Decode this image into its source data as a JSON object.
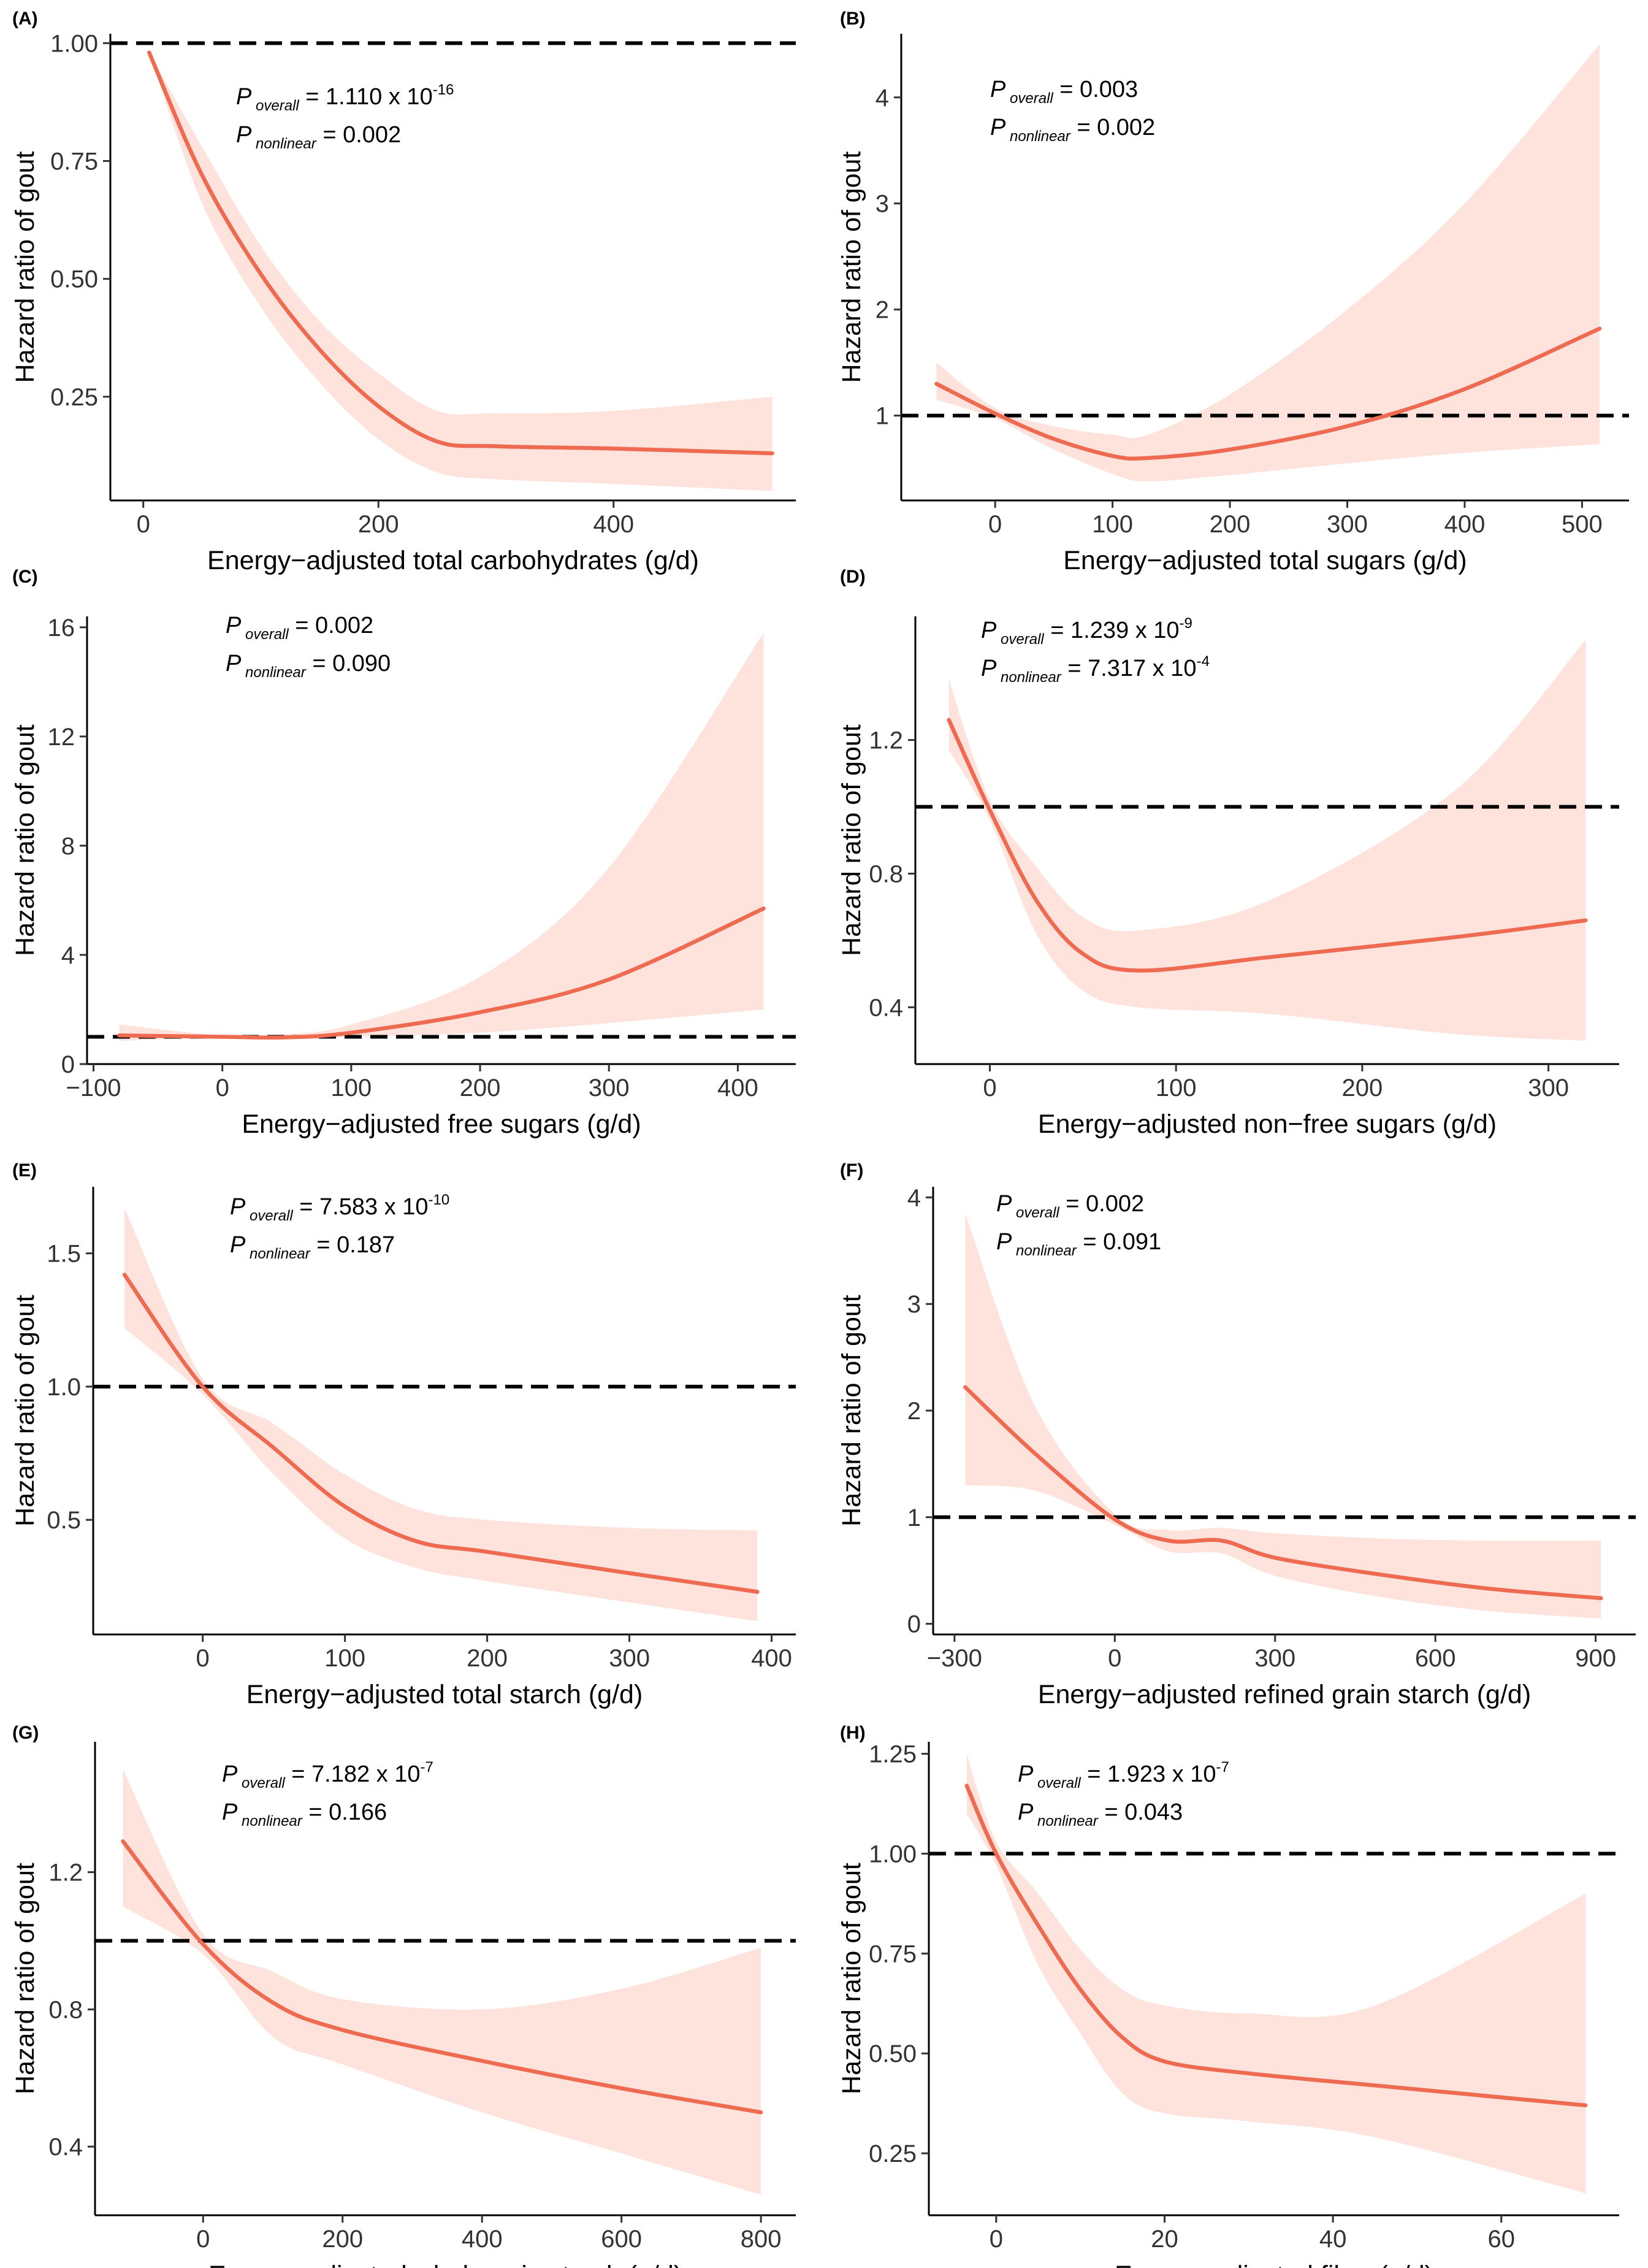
{
  "figure": {
    "y_axis_label": "Hazard ratio of gout",
    "p_overall_label": "P",
    "p_overall_sub": "overall",
    "p_nonlinear_sub": "nonlinear"
  },
  "chart_data": [
    {
      "type": "line",
      "panel": "(A)",
      "title": "",
      "xlabel": "Energy−adjusted total carbohydrates (g/d)",
      "ylabel": "Hazard ratio of gout",
      "xlim": [
        -28,
        555
      ],
      "ylim": [
        0.03,
        1.02
      ],
      "xticks": [
        0,
        200,
        400
      ],
      "xtick_labels": [
        "0",
        "200",
        "400"
      ],
      "yticks": [
        0.25,
        0.5,
        0.75,
        1.0
      ],
      "ytick_labels": [
        "0.25",
        "0.50",
        "0.75",
        "1.00"
      ],
      "reference_line": 1.0,
      "p_overall": {
        "mantissa": "1.110 x 10",
        "exponent": "-16"
      },
      "p_nonlinear": {
        "mantissa": "0.002",
        "exponent": ""
      },
      "x": [
        5,
        50,
        100,
        150,
        200,
        250,
        300,
        400,
        535
      ],
      "hr": [
        0.98,
        0.72,
        0.51,
        0.35,
        0.23,
        0.155,
        0.145,
        0.14,
        0.13
      ],
      "lower": [
        0.98,
        0.66,
        0.44,
        0.28,
        0.16,
        0.09,
        0.075,
        0.065,
        0.05
      ],
      "upper": [
        0.98,
        0.78,
        0.57,
        0.41,
        0.3,
        0.22,
        0.215,
        0.22,
        0.25
      ]
    },
    {
      "type": "line",
      "panel": "(B)",
      "title": "",
      "xlabel": "Energy−adjusted total sugars (g/d)",
      "ylabel": "Hazard ratio of gout",
      "xlim": [
        -80,
        540
      ],
      "ylim": [
        0.2,
        4.6
      ],
      "xticks": [
        0,
        100,
        200,
        300,
        400,
        500
      ],
      "xtick_labels": [
        "0",
        "100",
        "200",
        "300",
        "400",
        "500"
      ],
      "yticks": [
        1,
        2,
        3,
        4
      ],
      "ytick_labels": [
        "1",
        "2",
        "3",
        "4"
      ],
      "reference_line": 1.0,
      "p_overall": {
        "mantissa": "0.003",
        "exponent": ""
      },
      "p_nonlinear": {
        "mantissa": "0.002",
        "exponent": ""
      },
      "x": [
        -50,
        0,
        50,
        100,
        130,
        200,
        300,
        400,
        515
      ],
      "hr": [
        1.3,
        1.02,
        0.78,
        0.62,
        0.6,
        0.68,
        0.9,
        1.25,
        1.82
      ],
      "lower": [
        1.15,
        0.97,
        0.68,
        0.45,
        0.38,
        0.44,
        0.55,
        0.65,
        0.73
      ],
      "upper": [
        1.5,
        1.07,
        0.9,
        0.82,
        0.82,
        1.2,
        2.0,
        3.0,
        4.5
      ]
    },
    {
      "type": "line",
      "panel": "(C)",
      "title": "",
      "xlabel": "Energy−adjusted free sugars (g/d)",
      "ylabel": "Hazard ratio of gout",
      "xlim": [
        -105,
        445
      ],
      "ylim": [
        0,
        16.4
      ],
      "xticks": [
        -100,
        0,
        100,
        200,
        300,
        400
      ],
      "xtick_labels": [
        "−100",
        "0",
        "100",
        "200",
        "300",
        "400"
      ],
      "yticks": [
        0,
        4,
        8,
        12,
        16
      ],
      "ytick_labels": [
        "0",
        "4",
        "8",
        "12",
        "16"
      ],
      "reference_line": 1.0,
      "p_overall": {
        "mantissa": "0.002",
        "exponent": ""
      },
      "p_nonlinear": {
        "mantissa": "0.090",
        "exponent": ""
      },
      "x": [
        -80,
        0,
        50,
        100,
        200,
        300,
        420
      ],
      "hr": [
        1.05,
        1.0,
        0.98,
        1.15,
        1.9,
        3.1,
        5.7
      ],
      "lower": [
        0.85,
        0.97,
        0.92,
        1.0,
        1.15,
        1.5,
        2.0
      ],
      "upper": [
        1.45,
        1.05,
        1.1,
        1.45,
        3.2,
        7.2,
        15.8
      ]
    },
    {
      "type": "line",
      "panel": "(D)",
      "title": "",
      "xlabel": "Energy−adjusted non−free sugars (g/d)",
      "ylabel": "Hazard ratio of gout",
      "xlim": [
        -40,
        338
      ],
      "ylim": [
        0.23,
        1.57
      ],
      "xticks": [
        0,
        100,
        200,
        300
      ],
      "xtick_labels": [
        "0",
        "100",
        "200",
        "300"
      ],
      "yticks": [
        0.4,
        0.8,
        1.2
      ],
      "ytick_labels": [
        "0.4",
        "0.8",
        "1.2"
      ],
      "reference_line": 1.0,
      "p_overall": {
        "mantissa": "1.239 x 10",
        "exponent": "-9"
      },
      "p_nonlinear": {
        "mantissa": "7.317 x 10",
        "exponent": "-4"
      },
      "x": [
        -22,
        0,
        25,
        50,
        80,
        150,
        250,
        320
      ],
      "hr": [
        1.26,
        0.99,
        0.72,
        0.56,
        0.51,
        0.55,
        0.61,
        0.66
      ],
      "lower": [
        1.17,
        0.96,
        0.62,
        0.45,
        0.4,
        0.38,
        0.32,
        0.3
      ],
      "upper": [
        1.38,
        1.02,
        0.82,
        0.67,
        0.63,
        0.72,
        1.05,
        1.5
      ]
    },
    {
      "type": "line",
      "panel": "(E)",
      "title": "",
      "xlabel": "Energy−adjusted total starch (g/d)",
      "ylabel": "Hazard ratio of gout",
      "xlim": [
        -77,
        417
      ],
      "ylim": [
        0.07,
        1.75
      ],
      "xticks": [
        0,
        100,
        200,
        300,
        400
      ],
      "xtick_labels": [
        "0",
        "100",
        "200",
        "300",
        "400"
      ],
      "yticks": [
        0.5,
        1.0,
        1.5
      ],
      "ytick_labels": [
        "0.5",
        "1.0",
        "1.5"
      ],
      "reference_line": 1.0,
      "p_overall": {
        "mantissa": "7.583 x 10",
        "exponent": "-10"
      },
      "p_nonlinear": {
        "mantissa": "0.187",
        "exponent": ""
      },
      "x": [
        -55,
        0,
        50,
        100,
        150,
        200,
        300,
        390
      ],
      "hr": [
        1.42,
        1.0,
        0.77,
        0.55,
        0.42,
        0.38,
        0.3,
        0.23
      ],
      "lower": [
        1.22,
        0.97,
        0.67,
        0.43,
        0.32,
        0.27,
        0.19,
        0.12
      ],
      "upper": [
        1.67,
        1.03,
        0.86,
        0.67,
        0.54,
        0.5,
        0.47,
        0.46
      ]
    },
    {
      "type": "line",
      "panel": "(F)",
      "title": "",
      "xlabel": "Energy−adjusted refined grain starch (g/d)",
      "ylabel": "Hazard ratio of gout",
      "xlim": [
        -340,
        975
      ],
      "ylim": [
        -0.1,
        4.1
      ],
      "xticks": [
        -300,
        0,
        300,
        600,
        900
      ],
      "xtick_labels": [
        "−300",
        "0",
        "300",
        "600",
        "900"
      ],
      "yticks": [
        0,
        1,
        2,
        3,
        4
      ],
      "ytick_labels": [
        "0",
        "1",
        "2",
        "3",
        "4"
      ],
      "reference_line": 1.0,
      "p_overall": {
        "mantissa": "0.002",
        "exponent": ""
      },
      "p_nonlinear": {
        "mantissa": "0.091",
        "exponent": ""
      },
      "x": [
        -280,
        -150,
        0,
        100,
        200,
        300,
        500,
        700,
        910
      ],
      "hr": [
        2.22,
        1.6,
        0.98,
        0.78,
        0.78,
        0.62,
        0.46,
        0.33,
        0.24
      ],
      "lower": [
        1.3,
        1.25,
        0.93,
        0.68,
        0.66,
        0.45,
        0.25,
        0.12,
        0.05
      ],
      "upper": [
        3.85,
        2.05,
        1.03,
        0.88,
        0.9,
        0.85,
        0.8,
        0.78,
        0.78
      ]
    },
    {
      "type": "line",
      "panel": "(G)",
      "title": "",
      "xlabel": "Energy−adjusted wholegrain starch (g/d)",
      "ylabel": "Hazard ratio of gout",
      "xlim": [
        -155,
        850
      ],
      "ylim": [
        0.2,
        1.58
      ],
      "xticks": [
        0,
        200,
        400,
        600,
        800
      ],
      "xtick_labels": [
        "0",
        "200",
        "400",
        "600",
        "800"
      ],
      "yticks": [
        0.4,
        0.8,
        1.2
      ],
      "ytick_labels": [
        "0.4",
        "0.8",
        "1.2"
      ],
      "reference_line": 1.0,
      "p_overall": {
        "mantissa": "7.182 x 10",
        "exponent": "-7"
      },
      "p_nonlinear": {
        "mantissa": "0.166",
        "exponent": ""
      },
      "x": [
        -115,
        0,
        100,
        200,
        400,
        600,
        800
      ],
      "hr": [
        1.29,
        0.99,
        0.82,
        0.74,
        0.65,
        0.57,
        0.5
      ],
      "lower": [
        1.1,
        0.96,
        0.72,
        0.64,
        0.5,
        0.38,
        0.26
      ],
      "upper": [
        1.5,
        1.02,
        0.91,
        0.83,
        0.8,
        0.86,
        0.98
      ]
    },
    {
      "type": "line",
      "panel": "(H)",
      "title": "",
      "xlabel": "Energy−adjusted fiber (g/d)",
      "ylabel": "Hazard ratio of gout",
      "xlim": [
        -8,
        74
      ],
      "ylim": [
        0.095,
        1.28
      ],
      "xticks": [
        0,
        20,
        40,
        60
      ],
      "xtick_labels": [
        "0",
        "20",
        "40",
        "60"
      ],
      "yticks": [
        0.25,
        0.5,
        0.75,
        1.0,
        1.25
      ],
      "ytick_labels": [
        "0.25",
        "0.50",
        "0.75",
        "1.00",
        "1.25"
      ],
      "reference_line": 1.0,
      "p_overall": {
        "mantissa": "1.923 x 10",
        "exponent": "-7"
      },
      "p_nonlinear": {
        "mantissa": "0.043",
        "exponent": ""
      },
      "x": [
        -3.5,
        0,
        5,
        10,
        15,
        20,
        30,
        45,
        70
      ],
      "hr": [
        1.17,
        1.0,
        0.82,
        0.66,
        0.54,
        0.48,
        0.45,
        0.42,
        0.37
      ],
      "lower": [
        1.1,
        0.97,
        0.72,
        0.55,
        0.4,
        0.35,
        0.33,
        0.29,
        0.15
      ],
      "upper": [
        1.25,
        1.03,
        0.9,
        0.76,
        0.66,
        0.62,
        0.6,
        0.62,
        0.9
      ]
    }
  ]
}
